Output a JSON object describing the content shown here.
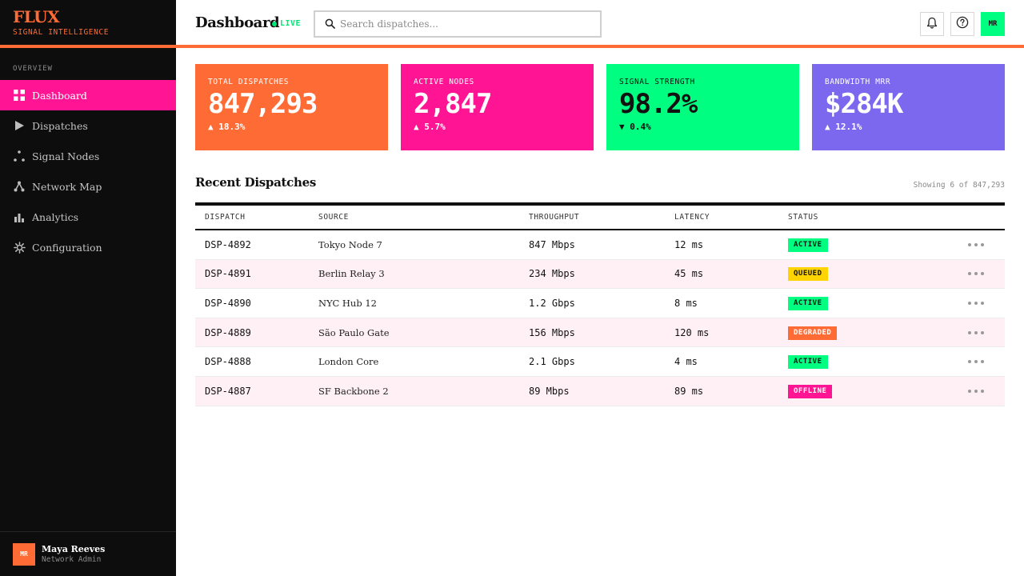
{
  "brand": {
    "name": "FLUX",
    "tagline": "SIGNAL INTELLIGENCE"
  },
  "sidebar": {
    "section_label": "OVERVIEW",
    "items": [
      {
        "label": "Dashboard",
        "icon": "grid-icon",
        "active": true
      },
      {
        "label": "Dispatches",
        "icon": "play-icon",
        "active": false
      },
      {
        "label": "Signal Nodes",
        "icon": "nodes-icon",
        "active": false
      },
      {
        "label": "Network Map",
        "icon": "network-icon",
        "active": false
      },
      {
        "label": "Analytics",
        "icon": "bar-chart-icon",
        "active": false
      },
      {
        "label": "Configuration",
        "icon": "gear-icon",
        "active": false
      }
    ],
    "user": {
      "initials": "MR",
      "name": "Maya Reeves",
      "role": "Network Admin"
    }
  },
  "header": {
    "title": "Dashboard",
    "live_label": "LIVE",
    "search_placeholder": "Search dispatches...",
    "avatar_initials": "MR"
  },
  "cards": [
    {
      "label": "TOTAL DISPATCHES",
      "value": "847,293",
      "delta": "▲ 18.3%",
      "color": "#ff6b35"
    },
    {
      "label": "ACTIVE NODES",
      "value": "2,847",
      "delta": "▲ 5.7%",
      "color": "#ff1493"
    },
    {
      "label": "SIGNAL STRENGTH",
      "value": "98.2%",
      "delta": "▼ 0.4%",
      "color": "#00ff80"
    },
    {
      "label": "BANDWIDTH MRR",
      "value": "$284K",
      "delta": "▲ 12.1%",
      "color": "#7b68ee"
    }
  ],
  "recent": {
    "title": "Recent Dispatches",
    "showing": "Showing 6 of 847,293",
    "columns": [
      "DISPATCH",
      "SOURCE",
      "THROUGHPUT",
      "LATENCY",
      "STATUS"
    ],
    "rows": [
      {
        "id": "DSP-4892",
        "source": "Tokyo Node 7",
        "throughput": "847 Mbps",
        "latency": "12 ms",
        "status": "ACTIVE"
      },
      {
        "id": "DSP-4891",
        "source": "Berlin Relay 3",
        "throughput": "234 Mbps",
        "latency": "45 ms",
        "status": "QUEUED"
      },
      {
        "id": "DSP-4890",
        "source": "NYC Hub 12",
        "throughput": "1.2 Gbps",
        "latency": "8 ms",
        "status": "ACTIVE"
      },
      {
        "id": "DSP-4889",
        "source": "São Paulo Gate",
        "throughput": "156 Mbps",
        "latency": "120 ms",
        "status": "DEGRADED"
      },
      {
        "id": "DSP-4888",
        "source": "London Core",
        "throughput": "2.1 Gbps",
        "latency": "4 ms",
        "status": "ACTIVE"
      },
      {
        "id": "DSP-4887",
        "source": "SF Backbone 2",
        "throughput": "89 Mbps",
        "latency": "89 ms",
        "status": "OFFLINE"
      }
    ]
  },
  "colors": {
    "accent_orange": "#ff6b35",
    "accent_pink": "#ff1493",
    "accent_green": "#00ff80",
    "accent_purple": "#7b68ee",
    "status_queued": "#ffd400"
  }
}
